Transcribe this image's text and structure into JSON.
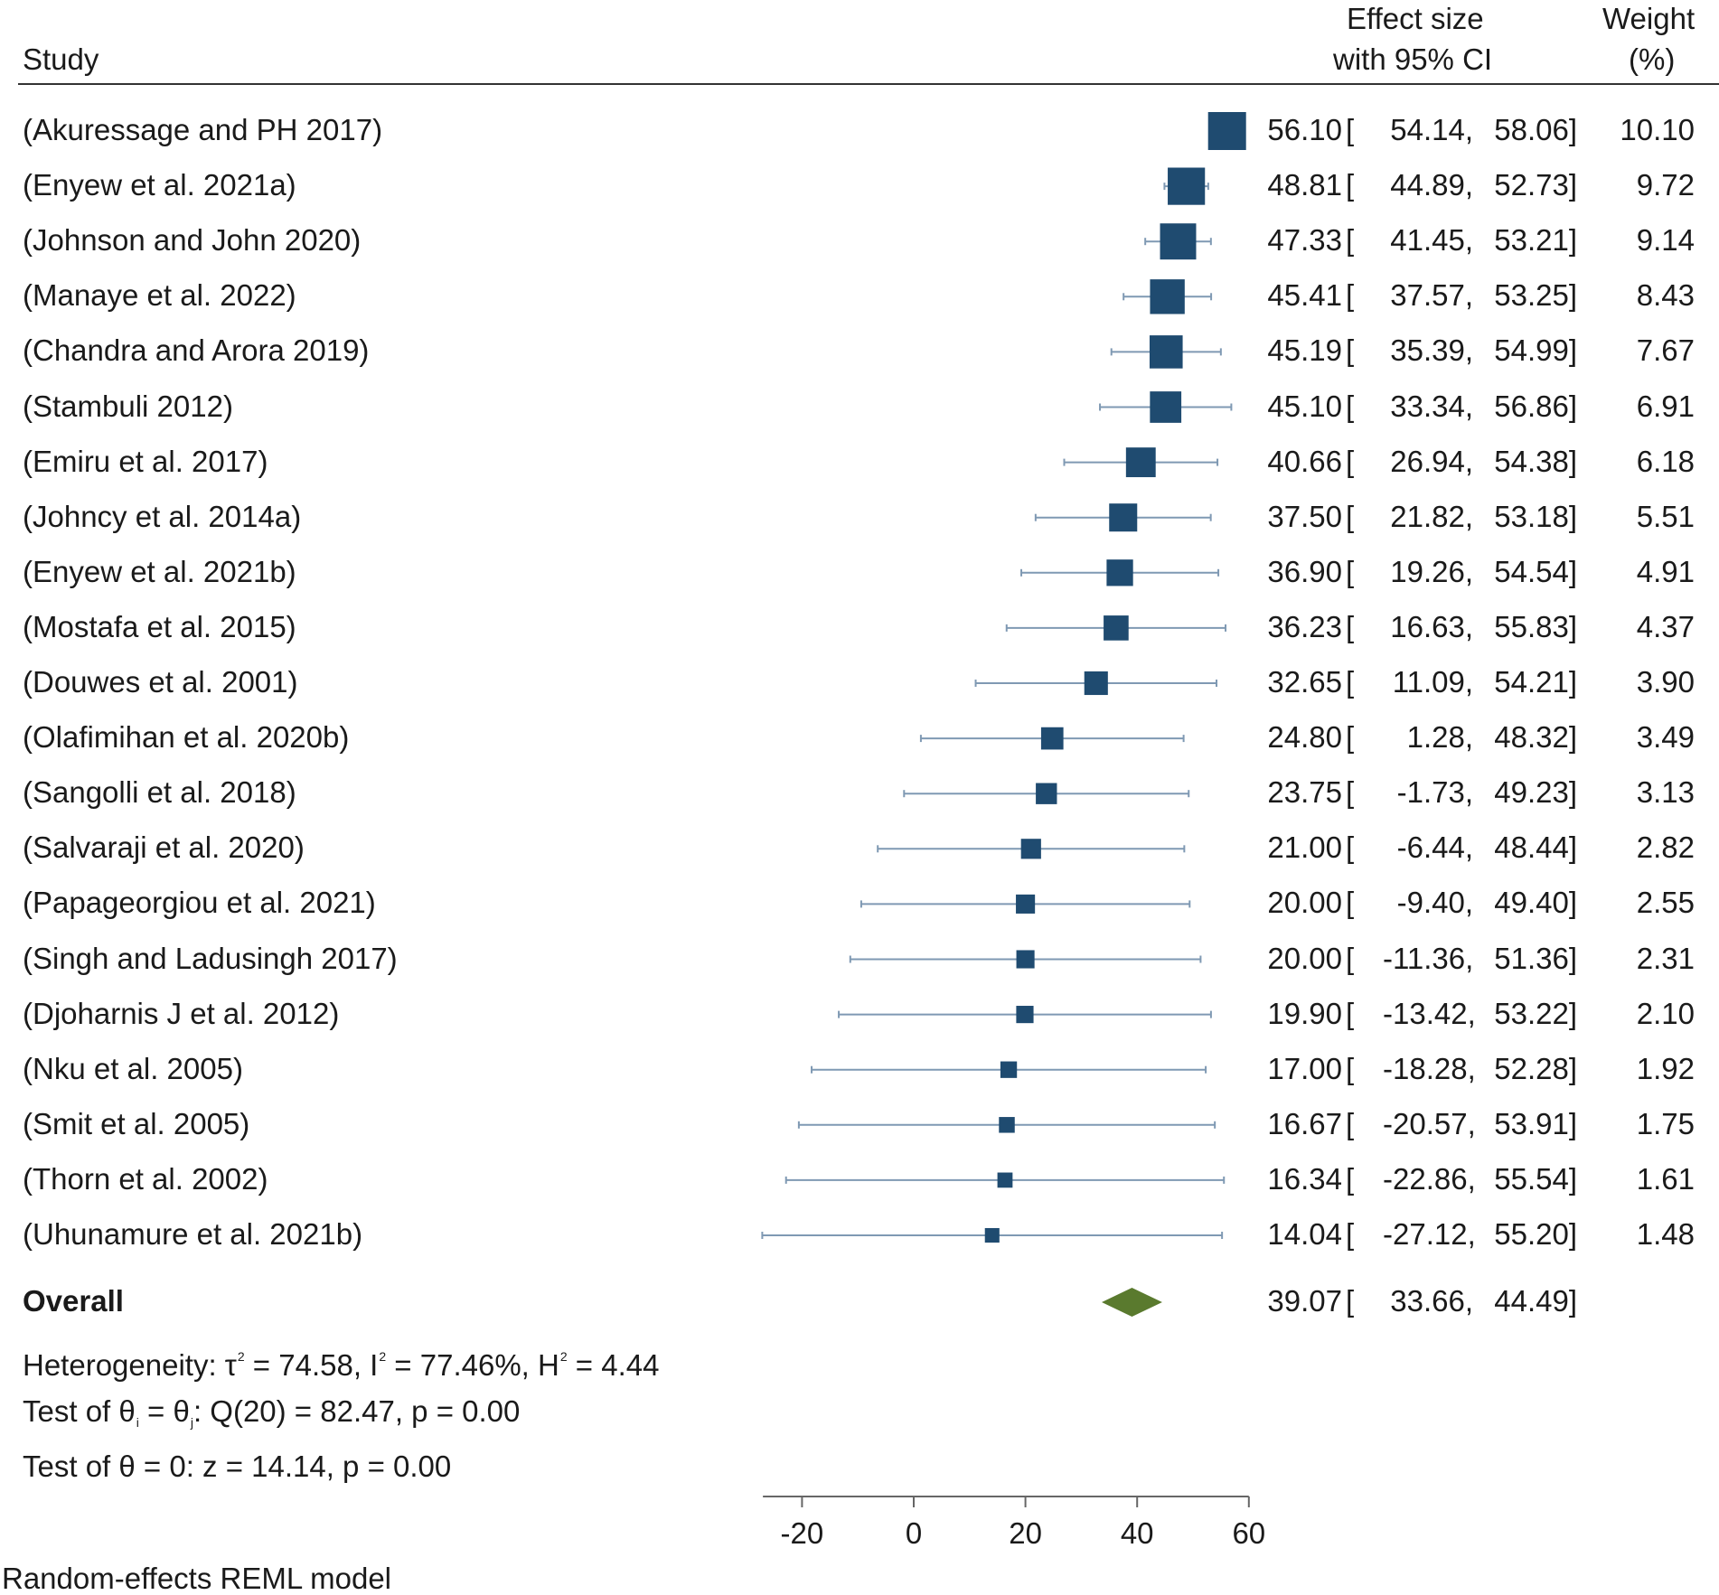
{
  "header": {
    "study": "Study",
    "effect_line1": "Effect size",
    "effect_line2": "with 95% CI",
    "weight_line1": "Weight",
    "weight_line2": "(%)"
  },
  "colors": {
    "marker": "#1f4b70",
    "ci_line": "#7f99b3",
    "diamond": "#5a7a2e",
    "text": "#1a1a1a"
  },
  "chart_data": {
    "type": "forest",
    "xlim": [
      -27,
      60
    ],
    "xticks": [
      -20,
      0,
      20,
      40,
      60
    ],
    "xtick_labels": [
      "-20",
      "0",
      "20",
      "40",
      "60"
    ],
    "studies": [
      {
        "label": "(Akuressage and PH 2017)",
        "es": 56.1,
        "lo": 54.14,
        "hi": 58.06,
        "weight": 10.1,
        "es_text": "56.10",
        "lo_text": "54.14,",
        "hi_text": "58.06]",
        "w_text": "10.10"
      },
      {
        "label": "(Enyew et al. 2021a)",
        "es": 48.81,
        "lo": 44.89,
        "hi": 52.73,
        "weight": 9.72,
        "es_text": "48.81",
        "lo_text": "44.89,",
        "hi_text": "52.73]",
        "w_text": "9.72"
      },
      {
        "label": "(Johnson and John 2020)",
        "es": 47.33,
        "lo": 41.45,
        "hi": 53.21,
        "weight": 9.14,
        "es_text": "47.33",
        "lo_text": "41.45,",
        "hi_text": "53.21]",
        "w_text": "9.14"
      },
      {
        "label": "(Manaye et al. 2022)",
        "es": 45.41,
        "lo": 37.57,
        "hi": 53.25,
        "weight": 8.43,
        "es_text": "45.41",
        "lo_text": "37.57,",
        "hi_text": "53.25]",
        "w_text": "8.43"
      },
      {
        "label": "(Chandra and Arora 2019)",
        "es": 45.19,
        "lo": 35.39,
        "hi": 54.99,
        "weight": 7.67,
        "es_text": "45.19",
        "lo_text": "35.39,",
        "hi_text": "54.99]",
        "w_text": "7.67"
      },
      {
        "label": "(Stambuli 2012)",
        "es": 45.1,
        "lo": 33.34,
        "hi": 56.86,
        "weight": 6.91,
        "es_text": "45.10",
        "lo_text": "33.34,",
        "hi_text": "56.86]",
        "w_text": "6.91"
      },
      {
        "label": "(Emiru et al. 2017)",
        "es": 40.66,
        "lo": 26.94,
        "hi": 54.38,
        "weight": 6.18,
        "es_text": "40.66",
        "lo_text": "26.94,",
        "hi_text": "54.38]",
        "w_text": "6.18"
      },
      {
        "label": "(Johncy et al. 2014a)",
        "es": 37.5,
        "lo": 21.82,
        "hi": 53.18,
        "weight": 5.51,
        "es_text": "37.50",
        "lo_text": "21.82,",
        "hi_text": "53.18]",
        "w_text": "5.51"
      },
      {
        "label": "(Enyew et al. 2021b)",
        "es": 36.9,
        "lo": 19.26,
        "hi": 54.54,
        "weight": 4.91,
        "es_text": "36.90",
        "lo_text": "19.26,",
        "hi_text": "54.54]",
        "w_text": "4.91"
      },
      {
        "label": "(Mostafa et al. 2015)",
        "es": 36.23,
        "lo": 16.63,
        "hi": 55.83,
        "weight": 4.37,
        "es_text": "36.23",
        "lo_text": "16.63,",
        "hi_text": "55.83]",
        "w_text": "4.37"
      },
      {
        "label": "(Douwes et al. 2001)",
        "es": 32.65,
        "lo": 11.09,
        "hi": 54.21,
        "weight": 3.9,
        "es_text": "32.65",
        "lo_text": "11.09,",
        "hi_text": "54.21]",
        "w_text": "3.90"
      },
      {
        "label": "(Olafimihan et al. 2020b)",
        "es": 24.8,
        "lo": 1.28,
        "hi": 48.32,
        "weight": 3.49,
        "es_text": "24.80",
        "lo_text": "1.28,",
        "hi_text": "48.32]",
        "w_text": "3.49"
      },
      {
        "label": "(Sangolli et al. 2018)",
        "es": 23.75,
        "lo": -1.73,
        "hi": 49.23,
        "weight": 3.13,
        "es_text": "23.75",
        "lo_text": "-1.73,",
        "hi_text": "49.23]",
        "w_text": "3.13"
      },
      {
        "label": "(Salvaraji et al. 2020)",
        "es": 21.0,
        "lo": -6.44,
        "hi": 48.44,
        "weight": 2.82,
        "es_text": "21.00",
        "lo_text": "-6.44,",
        "hi_text": "48.44]",
        "w_text": "2.82"
      },
      {
        "label": "(Papageorgiou et al. 2021)",
        "es": 20.0,
        "lo": -9.4,
        "hi": 49.4,
        "weight": 2.55,
        "es_text": "20.00",
        "lo_text": "-9.40,",
        "hi_text": "49.40]",
        "w_text": "2.55"
      },
      {
        "label": "(Singh and Ladusingh 2017)",
        "es": 20.0,
        "lo": -11.36,
        "hi": 51.36,
        "weight": 2.31,
        "es_text": "20.00",
        "lo_text": "-11.36,",
        "hi_text": "51.36]",
        "w_text": "2.31"
      },
      {
        "label": "(Djoharnis J et al. 2012)",
        "es": 19.9,
        "lo": -13.42,
        "hi": 53.22,
        "weight": 2.1,
        "es_text": "19.90",
        "lo_text": "-13.42,",
        "hi_text": "53.22]",
        "w_text": "2.10"
      },
      {
        "label": "(Nku et al. 2005)",
        "es": 17.0,
        "lo": -18.28,
        "hi": 52.28,
        "weight": 1.92,
        "es_text": "17.00",
        "lo_text": "-18.28,",
        "hi_text": "52.28]",
        "w_text": "1.92"
      },
      {
        "label": "(Smit et al. 2005)",
        "es": 16.67,
        "lo": -20.57,
        "hi": 53.91,
        "weight": 1.75,
        "es_text": "16.67",
        "lo_text": "-20.57,",
        "hi_text": "53.91]",
        "w_text": "1.75"
      },
      {
        "label": "(Thorn et al. 2002)",
        "es": 16.34,
        "lo": -22.86,
        "hi": 55.54,
        "weight": 1.61,
        "es_text": "16.34",
        "lo_text": "-22.86,",
        "hi_text": "55.54]",
        "w_text": "1.61"
      },
      {
        "label": "(Uhunamure et al. 2021b)",
        "es": 14.04,
        "lo": -27.12,
        "hi": 55.2,
        "weight": 1.48,
        "es_text": "14.04",
        "lo_text": "-27.12,",
        "hi_text": "55.20]",
        "w_text": "1.48"
      }
    ],
    "overall": {
      "label": "Overall",
      "es": 39.07,
      "lo": 33.66,
      "hi": 44.49,
      "es_text": "39.07",
      "lo_text": "33.66,",
      "hi_text": "44.49]"
    },
    "footer": {
      "het_prefix": "Heterogeneity: τ",
      "het_tau_sup": "2",
      "het_mid1": " = 74.58, I",
      "het_i_sup": "2",
      "het_mid2": " = 77.46%, H",
      "het_h_sup": "2",
      "het_end": " = 4.44",
      "test1_prefix": "Test of θ",
      "test1_sub1": "i",
      "test1_mid": " = θ",
      "test1_sub2": "j",
      "test1_end": ": Q(20) = 82.47, p = 0.00",
      "test2": "Test of θ = 0: z = 14.14, p = 0.00",
      "model": "Random-effects REML model"
    }
  }
}
